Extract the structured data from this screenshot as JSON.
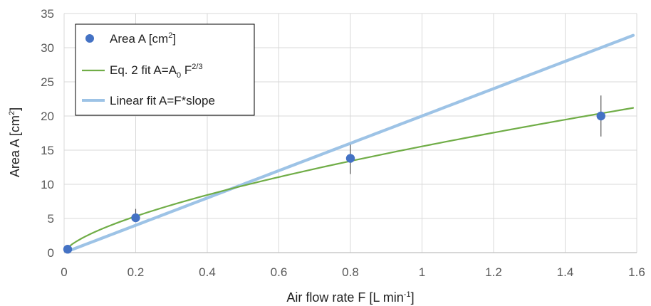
{
  "chart_data": {
    "type": "scatter",
    "xlabel": {
      "text": "Air flow rate F [L min",
      "sup": "-1",
      "tail": "]"
    },
    "ylabel": {
      "text": "Area A [cm",
      "sup": "2",
      "tail": "]"
    },
    "xlim": [
      0,
      1.6
    ],
    "ylim": [
      0,
      35
    ],
    "xticks": [
      0,
      0.2,
      0.4,
      0.6,
      0.8,
      1,
      1.2,
      1.4,
      1.6
    ],
    "xtick_labels": [
      "0",
      "0.2",
      "0.4",
      "0.6",
      "0.8",
      "1",
      "1.2",
      "1.4",
      "1.6"
    ],
    "yticks": [
      0,
      5,
      10,
      15,
      20,
      25,
      30,
      35
    ],
    "ytick_labels": [
      "0",
      "5",
      "10",
      "15",
      "20",
      "25",
      "30",
      "35"
    ],
    "grid": true,
    "legend_position": "top-left",
    "series": [
      {
        "name": {
          "text": "Area A [cm",
          "sup": "2",
          "tail": "]"
        },
        "kind": "points",
        "color": "#4472c4",
        "x": [
          0.01,
          0.2,
          0.8,
          1.5
        ],
        "y": [
          0.5,
          5.1,
          13.8,
          20.0
        ],
        "err_low": [
          0.3,
          4.6,
          11.5,
          17.0
        ],
        "err_high": [
          0.7,
          6.4,
          15.8,
          23.0
        ]
      },
      {
        "name": {
          "text": "Eq. 2 fit A=A",
          "sub": "0",
          "mid": " F",
          "sup": "2/3",
          "tail": ""
        },
        "kind": "line",
        "color": "#70ad47",
        "form": "power",
        "coefficient": 15.55,
        "exponent": 0.6667,
        "x_range": [
          0.01,
          1.59
        ]
      },
      {
        "name": {
          "text": "Linear fit A=F*slope",
          "sup": "",
          "tail": ""
        },
        "kind": "line",
        "color": "#9dc3e6",
        "form": "linear",
        "slope": 20.0,
        "x_range": [
          0.01,
          1.59
        ]
      }
    ]
  }
}
